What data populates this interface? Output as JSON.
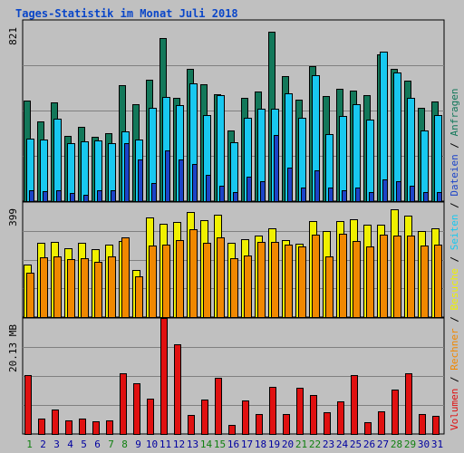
{
  "title": "Tages-Statistik im Monat Juli 2018",
  "colors": {
    "background": "#c0c0c0",
    "anfragen": "#13785a",
    "dateien": "#18c8f0",
    "seiten": "#1c44c8",
    "besuche": "#f0f000",
    "rechner": "#f08800",
    "volumen": "#e01010",
    "weekday_label": "#0000a0",
    "weekend_label": "#108010"
  },
  "right_legend": {
    "separator": "/",
    "bottom_items": [
      {
        "text": "Volumen",
        "color": "#e01010"
      },
      {
        "text": "Rechner",
        "color": "#f08800"
      },
      {
        "text": "Besuche",
        "color": "#f0f000"
      }
    ],
    "top_items": [
      {
        "text": "Seiten",
        "color": "#18c8f0"
      },
      {
        "text": "Dateien",
        "color": "#1c44c8"
      },
      {
        "text": "Anfragen",
        "color": "#13785a"
      }
    ]
  },
  "chart_data": [
    {
      "type": "bar",
      "panel": "top",
      "y_max_label": "821",
      "ylim": [
        0,
        821
      ],
      "grid": true,
      "categories": [
        "1",
        "2",
        "3",
        "4",
        "5",
        "6",
        "7",
        "8",
        "9",
        "10",
        "11",
        "12",
        "13",
        "14",
        "15",
        "16",
        "17",
        "18",
        "19",
        "20",
        "21",
        "22",
        "23",
        "24",
        "25",
        "26",
        "27",
        "28",
        "29",
        "30",
        "31"
      ],
      "weekend_days": [
        "1",
        "7",
        "8",
        "14",
        "15",
        "21",
        "22",
        "28",
        "29"
      ],
      "series": [
        {
          "name": "Anfragen",
          "values": [
            455,
            363,
            447,
            297,
            336,
            291,
            306,
            524,
            441,
            549,
            740,
            469,
            599,
            531,
            486,
            320,
            468,
            497,
            768,
            565,
            458,
            613,
            477,
            508,
            501,
            481,
            666,
            601,
            544,
            424,
            451
          ]
        },
        {
          "name": "Dateien",
          "values": [
            282,
            278,
            374,
            262,
            271,
            274,
            264,
            317,
            279,
            421,
            474,
            434,
            533,
            389,
            481,
            268,
            379,
            420,
            418,
            488,
            378,
            570,
            302,
            387,
            438,
            370,
            677,
            581,
            470,
            322,
            389
          ]
        },
        {
          "name": "Seiten",
          "values": [
            50,
            44,
            50,
            35,
            30,
            50,
            51,
            261,
            190,
            83,
            230,
            190,
            170,
            120,
            70,
            40,
            112,
            91,
            300,
            150,
            60,
            140,
            62,
            50,
            60,
            40,
            100,
            90,
            70,
            40,
            40
          ]
        }
      ]
    },
    {
      "type": "bar",
      "panel": "middle",
      "y_max_label": "399",
      "ylim": [
        0,
        399
      ],
      "grid": true,
      "categories": [
        "1",
        "2",
        "3",
        "4",
        "5",
        "6",
        "7",
        "8",
        "9",
        "10",
        "11",
        "12",
        "13",
        "14",
        "15",
        "16",
        "17",
        "18",
        "19",
        "20",
        "21",
        "22",
        "23",
        "24",
        "25",
        "26",
        "27",
        "28",
        "29",
        "30",
        "31"
      ],
      "weekend_days": [
        "1",
        "7",
        "8",
        "14",
        "15",
        "21",
        "22",
        "28",
        "29"
      ],
      "series": [
        {
          "name": "Besuche",
          "values": [
            181,
            257,
            261,
            238,
            259,
            235,
            252,
            263,
            162,
            345,
            324,
            329,
            363,
            336,
            354,
            257,
            269,
            282,
            307,
            267,
            256,
            334,
            300,
            332,
            338,
            320,
            322,
            373,
            351,
            300,
            308
          ]
        },
        {
          "name": "Rechner",
          "values": [
            153,
            207,
            212,
            201,
            204,
            193,
            212,
            278,
            140,
            249,
            252,
            266,
            304,
            257,
            276,
            204,
            215,
            262,
            262,
            250,
            244,
            285,
            209,
            289,
            265,
            244,
            287,
            284,
            283,
            248,
            252
          ]
        }
      ]
    },
    {
      "type": "bar",
      "panel": "bottom",
      "y_max_label": "20.13 MB",
      "ylim": [
        0,
        20.13
      ],
      "grid": true,
      "categories": [
        "1",
        "2",
        "3",
        "4",
        "5",
        "6",
        "7",
        "8",
        "9",
        "10",
        "11",
        "12",
        "13",
        "14",
        "15",
        "16",
        "17",
        "18",
        "19",
        "20",
        "21",
        "22",
        "23",
        "24",
        "25",
        "26",
        "27",
        "28",
        "29",
        "30",
        "31"
      ],
      "weekend_days": [
        "1",
        "7",
        "8",
        "14",
        "15",
        "21",
        "22",
        "28",
        "29"
      ],
      "series": [
        {
          "name": "Volumen",
          "values": [
            10.3,
            2.6,
            4.2,
            2.3,
            2.6,
            2.2,
            2.3,
            10.5,
            8.8,
            6.2,
            20.13,
            15.5,
            3.3,
            6.0,
            9.8,
            1.5,
            5.8,
            3.4,
            8.1,
            3.4,
            8.0,
            6.8,
            3.8,
            5.6,
            10.3,
            2.1,
            4.0,
            7.7,
            10.6,
            3.5,
            3.1
          ]
        }
      ]
    }
  ]
}
